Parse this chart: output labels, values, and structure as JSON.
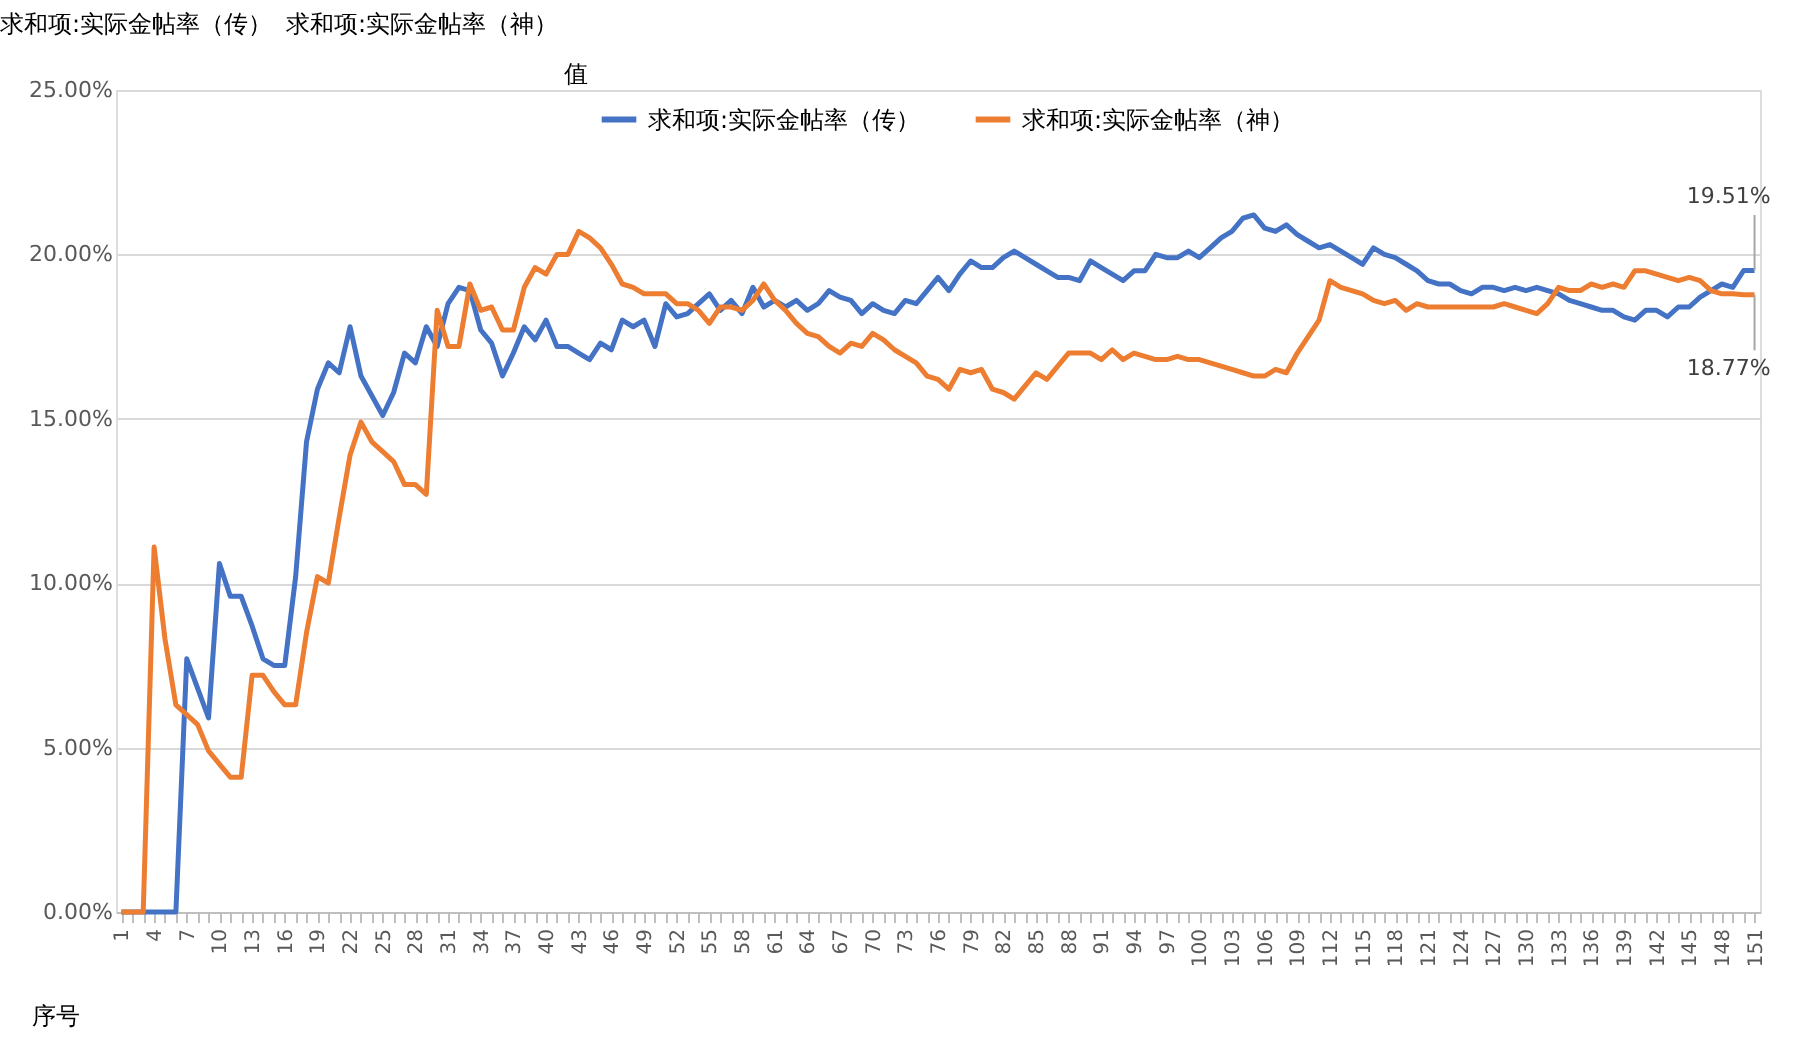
{
  "chart_data": {
    "type": "line",
    "categories": [
      "1",
      null,
      null,
      "4",
      null,
      null,
      "7",
      null,
      null,
      "10",
      null,
      null,
      "13",
      null,
      null,
      "16",
      null,
      null,
      "19",
      null,
      null,
      "22",
      null,
      null,
      "25",
      null,
      null,
      "28",
      null,
      null,
      "31",
      null,
      null,
      "34",
      null,
      null,
      "37",
      null,
      null,
      "40",
      null,
      null,
      "43",
      null,
      null,
      "46",
      null,
      null,
      "49",
      null,
      null,
      "52",
      null,
      null,
      "55",
      null,
      null,
      "58",
      null,
      null,
      "61",
      null,
      null,
      "64",
      null,
      null,
      "67",
      null,
      null,
      "70",
      null,
      null,
      "73",
      null,
      null,
      "76",
      null,
      null,
      "79",
      null,
      null,
      "82",
      null,
      null,
      "85",
      null,
      null,
      "88",
      null,
      null,
      "91",
      null,
      null,
      "94",
      null,
      null,
      "97",
      null,
      null,
      "100",
      null,
      null,
      "103",
      null,
      null,
      "106",
      null,
      null,
      "109",
      null,
      null,
      "112",
      null,
      null,
      "115",
      null,
      null,
      "118",
      null,
      null,
      "121",
      null,
      null,
      "124",
      null,
      null,
      "127",
      null,
      null,
      "130",
      null,
      null,
      "133",
      null,
      null,
      "136",
      null,
      null,
      "139",
      null,
      null,
      "142",
      null,
      null,
      "145",
      null,
      null,
      "148",
      null,
      null,
      "151"
    ],
    "series": [
      {
        "name": "求和项:实际金帖率（传）",
        "color": "#4472c4",
        "values": [
          0,
          0,
          0,
          0,
          0,
          0,
          7.7,
          6.8,
          5.9,
          10.6,
          9.6,
          9.6,
          8.7,
          7.7,
          7.5,
          7.5,
          10.2,
          14.3,
          15.9,
          16.7,
          16.4,
          17.8,
          16.3,
          15.7,
          15.1,
          15.8,
          17.0,
          16.7,
          17.8,
          17.2,
          18.5,
          19.0,
          18.9,
          17.7,
          17.3,
          16.3,
          17.0,
          17.8,
          17.4,
          18.0,
          17.2,
          17.2,
          17.0,
          16.8,
          17.3,
          17.1,
          18.0,
          17.8,
          18.0,
          17.2,
          18.5,
          18.1,
          18.2,
          18.5,
          18.8,
          18.3,
          18.6,
          18.2,
          19.0,
          18.4,
          18.6,
          18.4,
          18.6,
          18.3,
          18.5,
          18.9,
          18.7,
          18.6,
          18.2,
          18.5,
          18.3,
          18.2,
          18.6,
          18.5,
          18.9,
          19.3,
          18.9,
          19.4,
          19.8,
          19.6,
          19.6,
          19.9,
          20.1,
          19.9,
          19.7,
          19.5,
          19.3,
          19.3,
          19.2,
          19.8,
          19.6,
          19.4,
          19.2,
          19.5,
          19.5,
          20.0,
          19.9,
          19.9,
          20.1,
          19.9,
          20.2,
          20.5,
          20.7,
          21.1,
          21.2,
          20.8,
          20.7,
          20.9,
          20.6,
          20.4,
          20.2,
          20.3,
          20.1,
          19.9,
          19.7,
          20.2,
          20.0,
          19.9,
          19.7,
          19.5,
          19.2,
          19.1,
          19.1,
          18.9,
          18.8,
          19.0,
          19.0,
          18.9,
          19.0,
          18.9,
          19.0,
          18.9,
          18.8,
          18.6,
          18.5,
          18.4,
          18.3,
          18.3,
          18.1,
          18.0,
          18.3,
          18.3,
          18.1,
          18.4,
          18.4,
          18.7,
          18.9,
          19.1,
          19.0,
          19.51,
          19.51
        ]
      },
      {
        "name": "求和项:实际金帖率（神）",
        "color": "#ed7d31",
        "values": [
          0,
          0,
          0,
          11.1,
          8.3,
          6.3,
          6.0,
          5.7,
          4.9,
          4.5,
          4.1,
          4.1,
          7.2,
          7.2,
          6.7,
          6.3,
          6.3,
          8.5,
          10.2,
          10.0,
          12.0,
          13.9,
          14.9,
          14.3,
          14.0,
          13.7,
          13.0,
          13.0,
          12.7,
          18.3,
          17.2,
          17.2,
          19.1,
          18.3,
          18.4,
          17.7,
          17.7,
          19.0,
          19.6,
          19.4,
          20.0,
          20.0,
          20.7,
          20.5,
          20.2,
          19.7,
          19.1,
          19.0,
          18.8,
          18.8,
          18.8,
          18.5,
          18.5,
          18.3,
          17.9,
          18.4,
          18.4,
          18.3,
          18.6,
          19.1,
          18.6,
          18.3,
          17.9,
          17.6,
          17.5,
          17.2,
          17.0,
          17.3,
          17.2,
          17.6,
          17.4,
          17.1,
          16.9,
          16.7,
          16.3,
          16.2,
          15.9,
          16.5,
          16.4,
          16.5,
          15.9,
          15.8,
          15.6,
          16.0,
          16.4,
          16.2,
          16.6,
          17.0,
          17.0,
          17.0,
          16.8,
          17.1,
          16.8,
          17.0,
          16.9,
          16.8,
          16.8,
          16.9,
          16.8,
          16.8,
          16.7,
          16.6,
          16.5,
          16.4,
          16.3,
          16.3,
          16.5,
          16.4,
          17.0,
          17.5,
          18.0,
          19.2,
          19.0,
          18.9,
          18.8,
          18.6,
          18.5,
          18.6,
          18.3,
          18.5,
          18.4,
          18.4,
          18.4,
          18.4,
          18.4,
          18.4,
          18.4,
          18.5,
          18.4,
          18.3,
          18.2,
          18.5,
          19.0,
          18.9,
          18.9,
          19.1,
          19.0,
          19.1,
          19.0,
          19.5,
          19.5,
          19.4,
          19.3,
          19.2,
          19.3,
          19.2,
          18.9,
          18.8,
          18.8,
          18.77,
          18.77
        ]
      }
    ],
    "ylim": [
      0,
      25
    ],
    "yticks": [
      {
        "value": 0,
        "label": "0.00%"
      },
      {
        "value": 5,
        "label": "5.00%"
      },
      {
        "value": 10,
        "label": "10.00%"
      },
      {
        "value": 15,
        "label": "15.00%"
      },
      {
        "value": 20,
        "label": "20.00%"
      },
      {
        "value": 25,
        "label": "25.00%"
      }
    ],
    "grid": "y",
    "legend": "top",
    "marker": "none",
    "line_style": "solid",
    "annotations": [
      "求和项:实际金帖率（传）",
      "求和项:实际金帖率（神）",
      "值",
      "序号",
      {
        "text": "19.51%",
        "x": "151",
        "y": 19.51
      },
      {
        "text": "18.77%",
        "x": "151",
        "y": 18.77
      }
    ]
  }
}
